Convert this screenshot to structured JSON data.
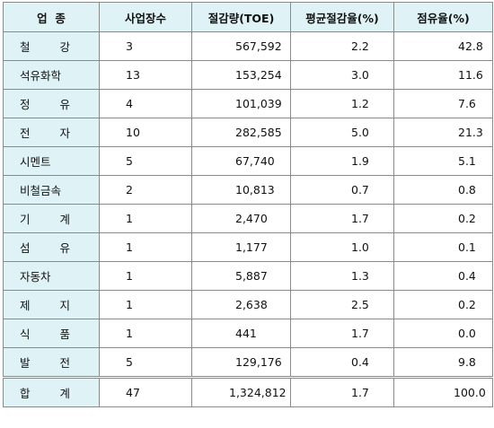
{
  "table": {
    "headers": {
      "industry": "업  종",
      "sites": "사업장수",
      "savings": "절감량(TOE)",
      "avg_rate": "평균절감율(%)",
      "share": "점유율(%)"
    },
    "rows": [
      {
        "industry": "철  강",
        "sites": "3",
        "savings": "567,592",
        "avg_rate": "2.2",
        "share": "42.8"
      },
      {
        "industry": "석유화학",
        "sites": "13",
        "savings": "153,254",
        "avg_rate": "3.0",
        "share": "11.6"
      },
      {
        "industry": "정  유",
        "sites": "4",
        "savings": "101,039",
        "avg_rate": "1.2",
        "share": "7.6"
      },
      {
        "industry": "전  자",
        "sites": "10",
        "savings": "282,585",
        "avg_rate": "5.0",
        "share": "21.3"
      },
      {
        "industry": "시멘트",
        "sites": "5",
        "savings": "67,740",
        "avg_rate": "1.9",
        "share": "5.1"
      },
      {
        "industry": "비철금속",
        "sites": "2",
        "savings": "10,813",
        "avg_rate": "0.7",
        "share": "0.8"
      },
      {
        "industry": "기  계",
        "sites": "1",
        "savings": "2,470",
        "avg_rate": "1.7",
        "share": "0.2"
      },
      {
        "industry": "섬  유",
        "sites": "1",
        "savings": "1,177",
        "avg_rate": "1.0",
        "share": "0.1"
      },
      {
        "industry": "자동차",
        "sites": "1",
        "savings": "5,887",
        "avg_rate": "1.3",
        "share": "0.4"
      },
      {
        "industry": "제  지",
        "sites": "1",
        "savings": "2,638",
        "avg_rate": "2.5",
        "share": "0.2"
      },
      {
        "industry": "식  품",
        "sites": "1",
        "savings": "441",
        "avg_rate": "1.7",
        "share": "0.0"
      },
      {
        "industry": "발  전",
        "sites": "5",
        "savings": "129,176",
        "avg_rate": "0.4",
        "share": "9.8"
      }
    ],
    "total": {
      "industry": "합  계",
      "sites": "47",
      "savings": "1,324,812",
      "avg_rate": "1.7",
      "share": "100.0"
    }
  },
  "colors": {
    "header_bg": "#dff3f6",
    "border": "#8a8a8a"
  }
}
